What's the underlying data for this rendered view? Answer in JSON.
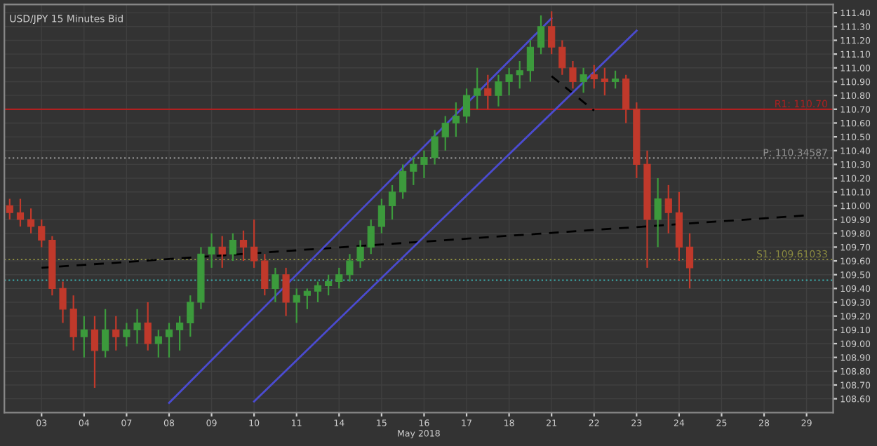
{
  "chart_data": {
    "type": "candlestick",
    "title": "USD/JPY 15 Minutes Bid",
    "xlabel": "May 2018",
    "categories": [
      null,
      null,
      null,
      "03",
      null,
      null,
      null,
      "04",
      null,
      null,
      null,
      "07",
      null,
      null,
      null,
      "08",
      null,
      null,
      null,
      "09",
      null,
      null,
      null,
      "10",
      null,
      null,
      null,
      "11",
      null,
      null,
      null,
      "14",
      null,
      null,
      null,
      "15",
      null,
      null,
      null,
      "16",
      null,
      null,
      null,
      "17",
      null,
      null,
      null,
      "18",
      null,
      null,
      null,
      "21",
      null,
      null,
      null,
      "22",
      null,
      null,
      null,
      "23",
      null,
      null,
      null,
      "24",
      null,
      null,
      null,
      "25",
      null,
      null,
      null,
      "28",
      null,
      null,
      null,
      "29",
      null,
      null
    ],
    "ohlc": [
      [
        110.0,
        110.05,
        109.9,
        109.95
      ],
      [
        109.95,
        110.05,
        109.85,
        109.9
      ],
      [
        109.9,
        109.98,
        109.8,
        109.85
      ],
      [
        109.85,
        109.9,
        109.7,
        109.75
      ],
      [
        109.75,
        109.78,
        109.35,
        109.4
      ],
      [
        109.4,
        109.45,
        109.15,
        109.25
      ],
      [
        109.25,
        109.35,
        108.95,
        109.05
      ],
      [
        109.05,
        109.2,
        108.9,
        109.1
      ],
      [
        109.1,
        109.2,
        108.68,
        108.95
      ],
      [
        108.95,
        109.25,
        108.9,
        109.1
      ],
      [
        109.1,
        109.2,
        108.95,
        109.05
      ],
      [
        109.05,
        109.15,
        108.98,
        109.1
      ],
      [
        109.1,
        109.25,
        109.0,
        109.15
      ],
      [
        109.15,
        109.3,
        108.95,
        109.0
      ],
      [
        109.0,
        109.1,
        108.9,
        109.05
      ],
      [
        109.05,
        109.15,
        108.9,
        109.1
      ],
      [
        109.1,
        109.2,
        108.95,
        109.15
      ],
      [
        109.15,
        109.35,
        109.05,
        109.3
      ],
      [
        109.3,
        109.7,
        109.25,
        109.65
      ],
      [
        109.65,
        109.8,
        109.55,
        109.7
      ],
      [
        109.7,
        109.78,
        109.55,
        109.65
      ],
      [
        109.65,
        109.8,
        109.6,
        109.75
      ],
      [
        109.75,
        109.82,
        109.6,
        109.7
      ],
      [
        109.7,
        109.9,
        109.55,
        109.6
      ],
      [
        109.6,
        109.65,
        109.35,
        109.4
      ],
      [
        109.4,
        109.55,
        109.3,
        109.5
      ],
      [
        109.5,
        109.55,
        109.2,
        109.3
      ],
      [
        109.3,
        109.4,
        109.15,
        109.35
      ],
      [
        109.35,
        109.4,
        109.25,
        109.38
      ],
      [
        109.38,
        109.45,
        109.3,
        109.42
      ],
      [
        109.42,
        109.5,
        109.35,
        109.45
      ],
      [
        109.45,
        109.55,
        109.4,
        109.5
      ],
      [
        109.5,
        109.65,
        109.45,
        109.6
      ],
      [
        109.6,
        109.75,
        109.55,
        109.7
      ],
      [
        109.7,
        109.9,
        109.65,
        109.85
      ],
      [
        109.85,
        110.05,
        109.8,
        110.0
      ],
      [
        110.0,
        110.15,
        109.9,
        110.1
      ],
      [
        110.1,
        110.3,
        110.05,
        110.25
      ],
      [
        110.25,
        110.35,
        110.15,
        110.3
      ],
      [
        110.3,
        110.4,
        110.2,
        110.35
      ],
      [
        110.35,
        110.55,
        110.3,
        110.5
      ],
      [
        110.5,
        110.65,
        110.4,
        110.6
      ],
      [
        110.6,
        110.75,
        110.5,
        110.65
      ],
      [
        110.65,
        110.85,
        110.6,
        110.8
      ],
      [
        110.8,
        111.0,
        110.7,
        110.85
      ],
      [
        110.85,
        110.95,
        110.7,
        110.8
      ],
      [
        110.8,
        110.95,
        110.72,
        110.9
      ],
      [
        110.9,
        111.0,
        110.8,
        110.95
      ],
      [
        110.95,
        111.05,
        110.85,
        110.98
      ],
      [
        110.98,
        111.2,
        110.9,
        111.15
      ],
      [
        111.15,
        111.38,
        111.1,
        111.3
      ],
      [
        111.3,
        111.41,
        111.1,
        111.15
      ],
      [
        111.15,
        111.2,
        110.95,
        111.0
      ],
      [
        111.0,
        111.05,
        110.85,
        110.9
      ],
      [
        110.9,
        111.0,
        110.82,
        110.95
      ],
      [
        110.95,
        111.02,
        110.85,
        110.92
      ],
      [
        110.92,
        111.0,
        110.8,
        110.9
      ],
      [
        110.9,
        110.98,
        110.85,
        110.92
      ],
      [
        110.92,
        110.95,
        110.6,
        110.7
      ],
      [
        110.7,
        110.75,
        110.2,
        110.3
      ],
      [
        110.3,
        110.4,
        109.55,
        109.9
      ],
      [
        109.9,
        110.2,
        109.7,
        110.05
      ],
      [
        110.05,
        110.15,
        109.8,
        109.95
      ],
      [
        109.95,
        110.1,
        109.6,
        109.7
      ],
      [
        109.7,
        109.8,
        109.4,
        109.55
      ],
      null,
      null,
      null,
      null,
      null,
      null,
      null,
      null,
      null,
      null,
      null,
      null,
      null
    ],
    "colors": [
      "#c0392b",
      "#c0392b",
      "#c0392b",
      "#c0392b",
      "#c0392b",
      "#c0392b",
      "#c0392b",
      "#3c9a3c",
      "#c0392b",
      "#3c9a3c",
      "#c0392b",
      "#3c9a3c",
      "#3c9a3c",
      "#c0392b",
      "#3c9a3c",
      "#3c9a3c",
      "#3c9a3c",
      "#3c9a3c",
      "#3c9a3c",
      "#3c9a3c",
      "#c0392b",
      "#3c9a3c",
      "#c0392b",
      "#c0392b",
      "#c0392b",
      "#3c9a3c",
      "#c0392b",
      "#3c9a3c",
      "#3c9a3c",
      "#3c9a3c",
      "#3c9a3c",
      "#3c9a3c",
      "#3c9a3c",
      "#3c9a3c",
      "#3c9a3c",
      "#3c9a3c",
      "#3c9a3c",
      "#3c9a3c",
      "#3c9a3c",
      "#3c9a3c",
      "#3c9a3c",
      "#3c9a3c",
      "#3c9a3c",
      "#3c9a3c",
      "#3c9a3c",
      "#c0392b",
      "#3c9a3c",
      "#3c9a3c",
      "#3c9a3c",
      "#3c9a3c",
      "#3c9a3c",
      "#c0392b",
      "#c0392b",
      "#c0392b",
      "#3c9a3c",
      "#c0392b",
      "#c0392b",
      "#3c9a3c",
      "#c0392b",
      "#c0392b",
      "#c0392b",
      "#3c9a3c",
      "#c0392b",
      "#c0392b",
      "#c0392b",
      null,
      null,
      null,
      null,
      null,
      null,
      null,
      null,
      null,
      null,
      null,
      null,
      null
    ],
    "series": [
      {
        "type": "line",
        "line_style": "dashed",
        "color": "#000000",
        "x": [
          "03",
          "29"
        ],
        "values": [
          109.55,
          109.93
        ]
      },
      {
        "type": "line",
        "line_style": "dashed",
        "color": "#000000",
        "x": [
          "21",
          "22"
        ],
        "values": [
          110.94,
          110.69
        ]
      },
      {
        "type": "line",
        "line_style": "solid",
        "color": "#4b4bd0",
        "x": [
          "08",
          "21"
        ],
        "values": [
          108.57,
          111.36
        ]
      },
      {
        "type": "line",
        "line_style": "solid",
        "color": "#4b4bd0",
        "x": [
          "10",
          "23"
        ],
        "values": [
          108.58,
          111.27
        ]
      }
    ],
    "ref_lines": [
      {
        "axis": "y",
        "value": 110.7,
        "label": "R1: 110.70",
        "color": "#b02020",
        "line_style": "solid"
      },
      {
        "axis": "y",
        "value": 110.34587,
        "label": "P: 110.34587",
        "color": "#909090",
        "line_style": "dotted"
      },
      {
        "axis": "y",
        "value": 109.61033,
        "label": "S1: 109.61033",
        "color": "#8a8a40",
        "line_style": "dotted"
      },
      {
        "axis": "y",
        "value": 109.46,
        "color": "#3aa0a0",
        "line_style": "dotted"
      }
    ],
    "ylim": [
      108.5,
      111.46
    ],
    "yticks": [
      {
        "value": 108.6,
        "label": "108.60"
      },
      {
        "value": 108.7,
        "label": "108.70"
      },
      {
        "value": 108.8,
        "label": "108.80"
      },
      {
        "value": 108.9,
        "label": "108.90"
      },
      {
        "value": 109.0,
        "label": "109.00"
      },
      {
        "value": 109.1,
        "label": "109.10"
      },
      {
        "value": 109.2,
        "label": "109.20"
      },
      {
        "value": 109.3,
        "label": "109.30"
      },
      {
        "value": 109.4,
        "label": "109.40"
      },
      {
        "value": 109.5,
        "label": "109.50"
      },
      {
        "value": 109.6,
        "label": "109.60"
      },
      {
        "value": 109.7,
        "label": "109.70"
      },
      {
        "value": 109.8,
        "label": "109.80"
      },
      {
        "value": 109.9,
        "label": "109.90"
      },
      {
        "value": 110.0,
        "label": "110.00"
      },
      {
        "value": 110.1,
        "label": "110.10"
      },
      {
        "value": 110.2,
        "label": "110.20"
      },
      {
        "value": 110.3,
        "label": "110.30"
      },
      {
        "value": 110.4,
        "label": "110.40"
      },
      {
        "value": 110.5,
        "label": "110.50"
      },
      {
        "value": 110.6,
        "label": "110.60"
      },
      {
        "value": 110.7,
        "label": "110.70"
      },
      {
        "value": 110.8,
        "label": "110.80"
      },
      {
        "value": 110.9,
        "label": "110.90"
      },
      {
        "value": 111.0,
        "label": "111.00"
      },
      {
        "value": 111.1,
        "label": "111.10"
      },
      {
        "value": 111.2,
        "label": "111.20"
      },
      {
        "value": 111.3,
        "label": "111.30"
      },
      {
        "value": 111.4,
        "label": "111.40"
      }
    ],
    "grid": true
  }
}
